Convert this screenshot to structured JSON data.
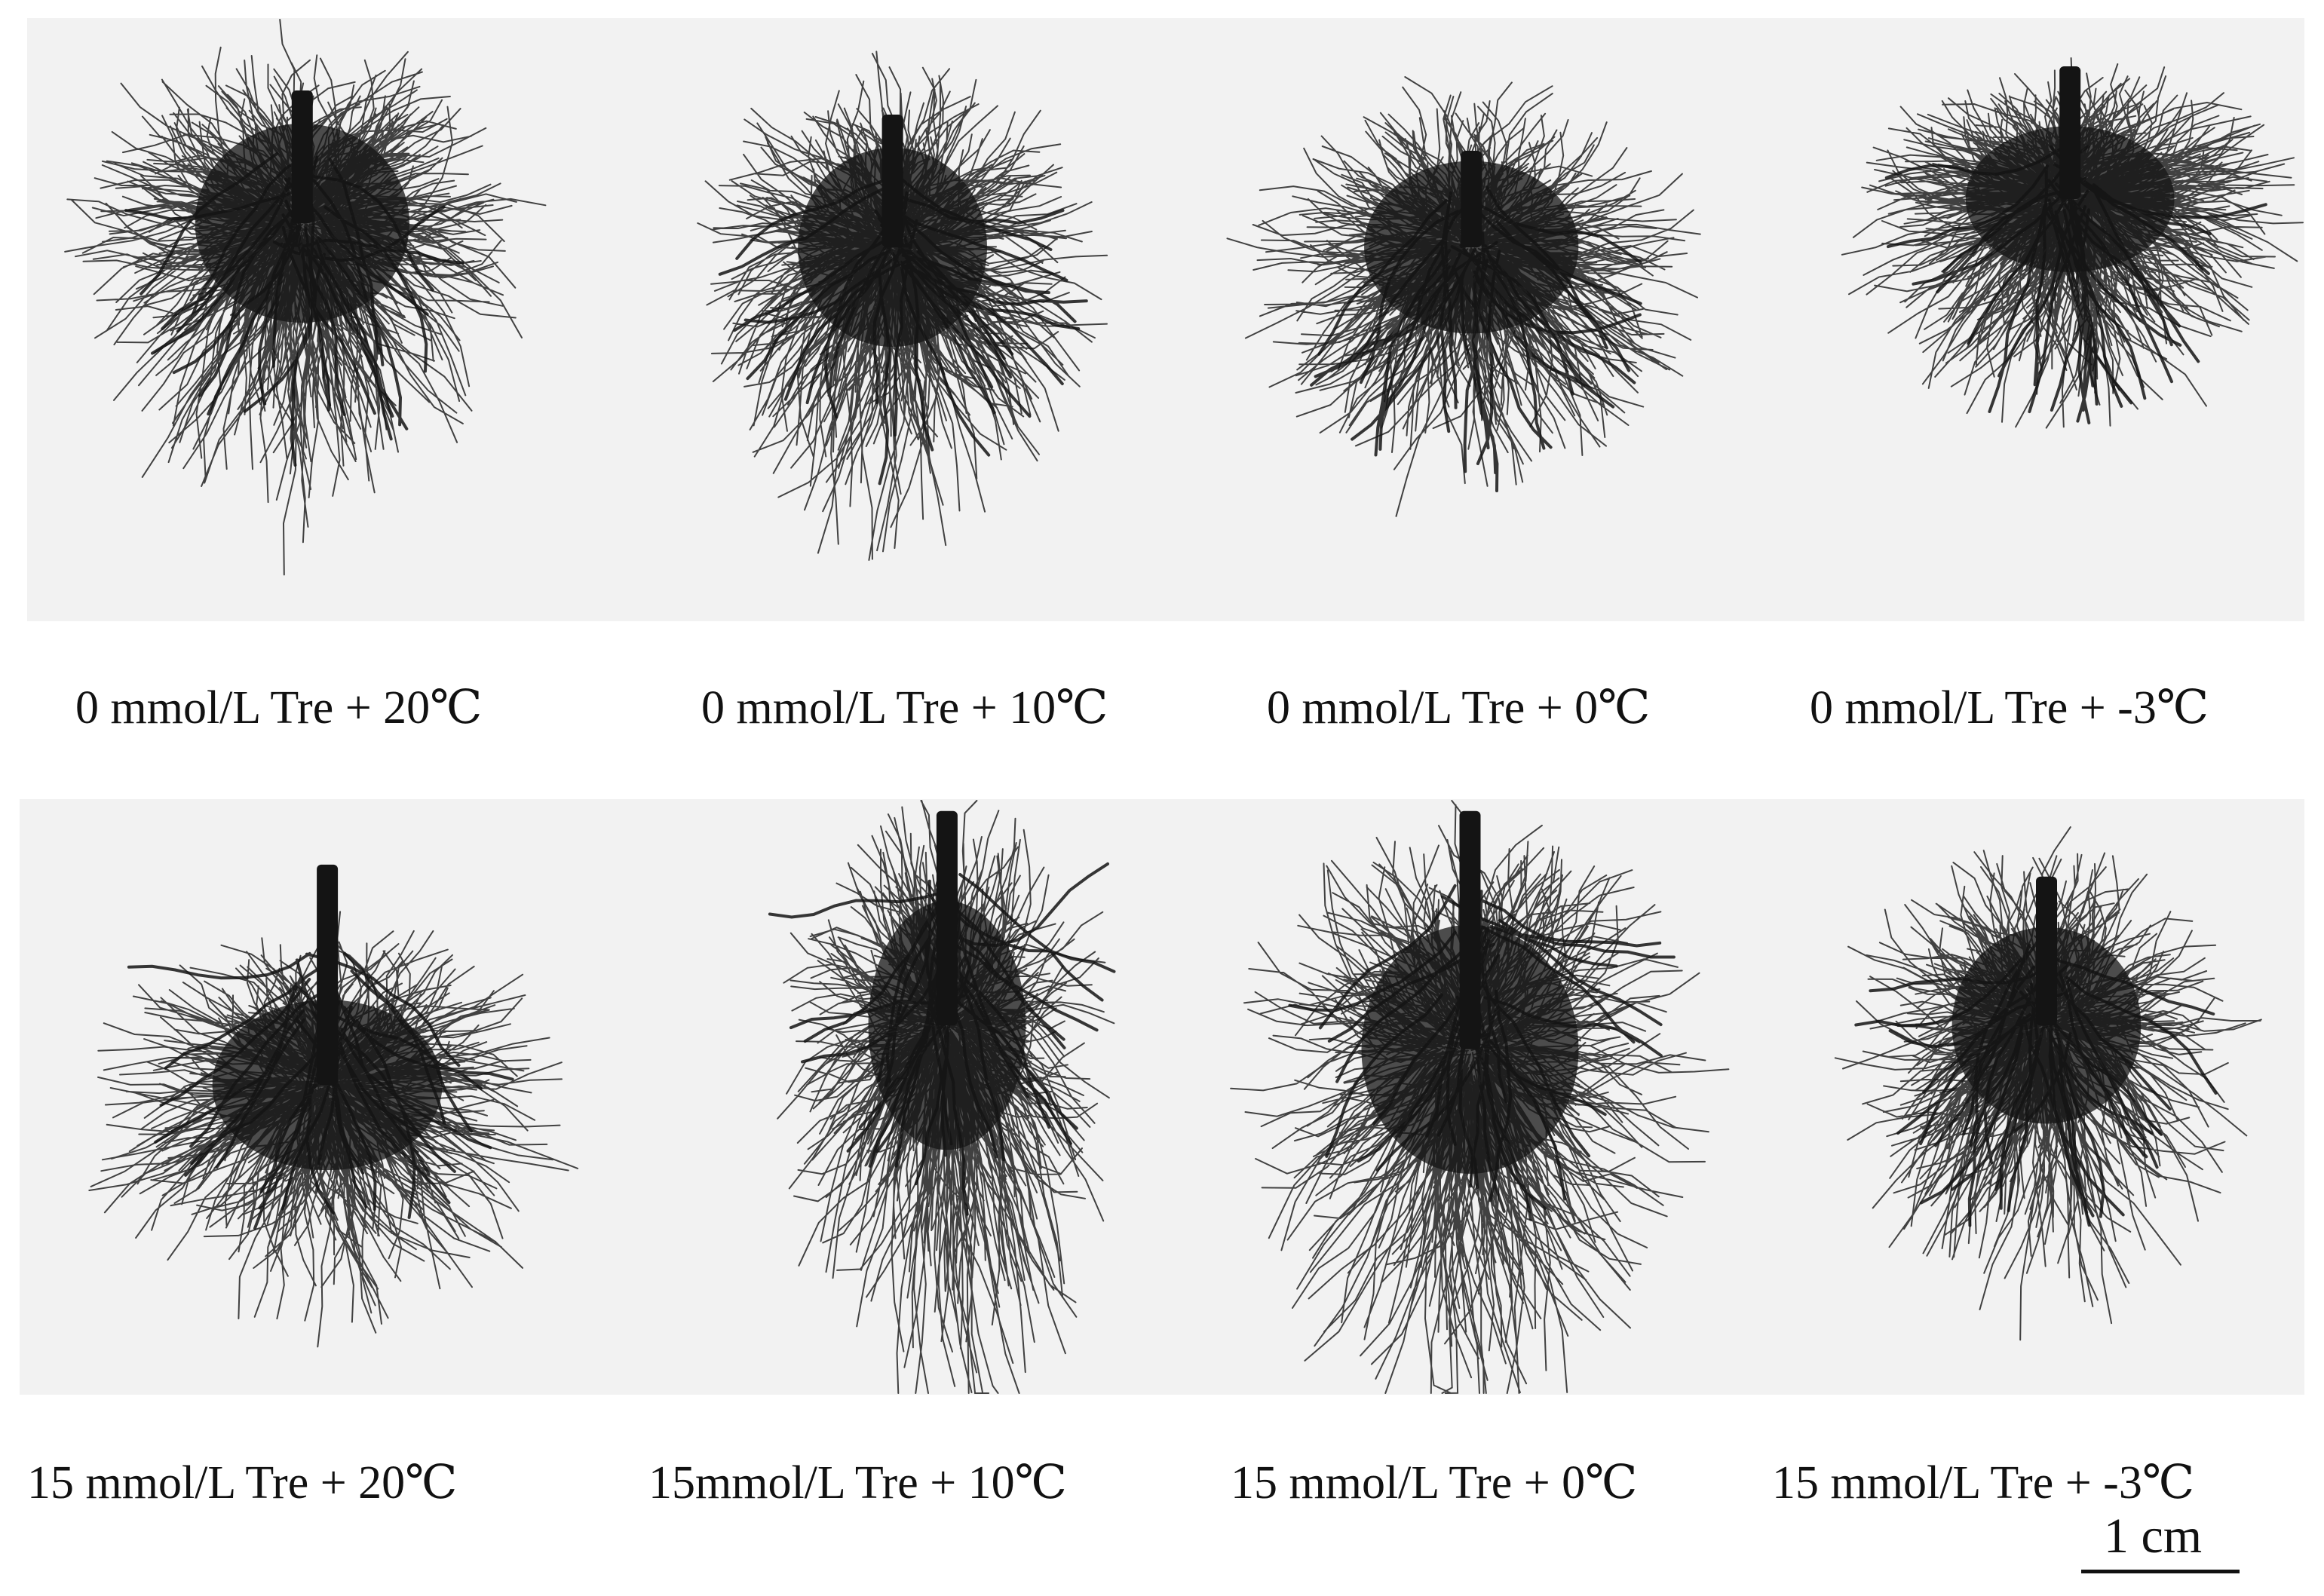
{
  "figure": {
    "panels": [
      {
        "id": "p1",
        "caption": "0 mmol/L Tre + 20℃"
      },
      {
        "id": "p2",
        "caption": "0 mmol/L Tre + 10℃"
      },
      {
        "id": "p3",
        "caption": "0 mmol/L Tre + 0℃"
      },
      {
        "id": "p4",
        "caption": "0 mmol/L Tre + -3℃"
      },
      {
        "id": "p5",
        "caption": "15 mmol/L Tre + 20℃"
      },
      {
        "id": "p6",
        "caption": "15mmol/L Tre + 10℃"
      },
      {
        "id": "p7",
        "caption": "15 mmol/L Tre + 0℃"
      },
      {
        "id": "p8",
        "caption": "15 mmol/L Tre + -3℃"
      }
    ],
    "scale_bar": {
      "label": "1 cm"
    },
    "colors": {
      "background": "#ffffff",
      "panel_bg": "#f2f2f2",
      "root": "#141414"
    }
  }
}
